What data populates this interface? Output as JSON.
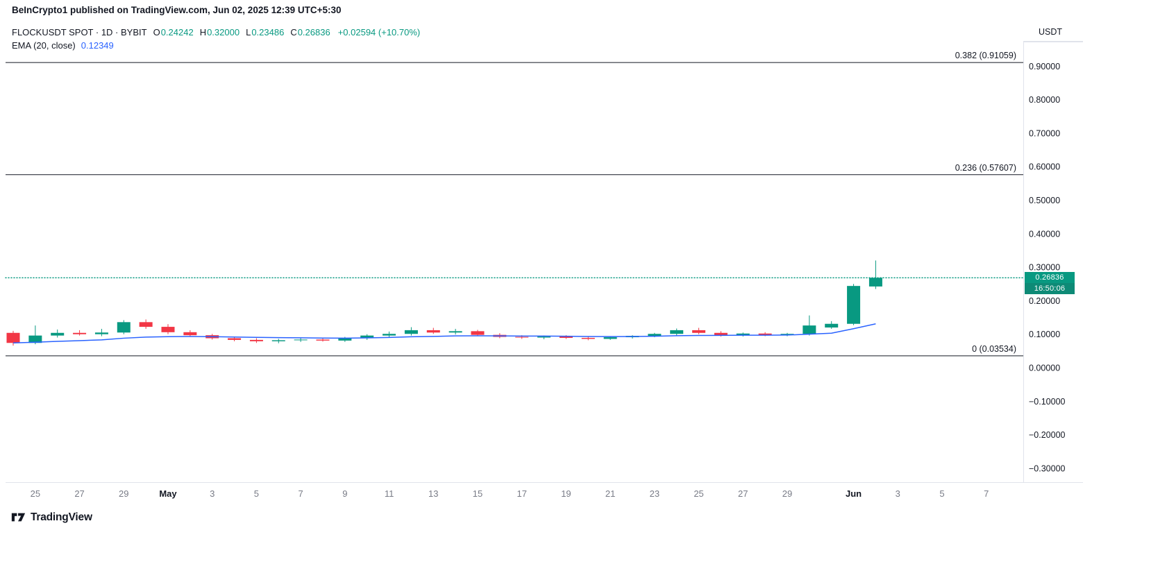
{
  "header": {
    "published_line": "BeInCrypto1 published on TradingView.com, Jun 02, 2025 12:39 UTC+5:30"
  },
  "legend": {
    "symbol": "FLOCKUSDT SPOT · 1D · BYBIT",
    "o_label": "O",
    "o": "0.24242",
    "h_label": "H",
    "h": "0.32000",
    "l_label": "L",
    "l": "0.23486",
    "c_label": "C",
    "c": "0.26836",
    "change": "+0.02594 (+10.70%)",
    "indicator": "EMA (20, close)",
    "indicator_value": "0.12349"
  },
  "price_axis": {
    "currency": "USDT",
    "price_badge": {
      "price": "0.26836",
      "countdown": "16:50:06"
    }
  },
  "footer": {
    "brand": "TradingView"
  },
  "colors": {
    "up": "#089981",
    "down": "#f23645",
    "ema": "#2962ff",
    "fib": "#131722",
    "axis_text": "#131722",
    "muted": "#787b86",
    "border": "#e0e3eb",
    "badge": "#089981",
    "badge_countdown": "#0e8a76",
    "background": "#ffffff"
  },
  "chart_data": {
    "type": "candlestick",
    "symbol": "FLOCKUSDT",
    "market": "SPOT",
    "interval": "1D",
    "exchange": "BYBIT",
    "last_price": 0.26836,
    "ema_period": 20,
    "ema_last_value": 0.12349,
    "ylim": [
      -0.35,
      1.0
    ],
    "grid": false,
    "fib_levels": [
      {
        "label": "0.382 (0.91059)",
        "value": 0.91059
      },
      {
        "label": "0.236 (0.57607)",
        "value": 0.57607
      },
      {
        "label": "0 (0.03534)",
        "value": 0.03534
      }
    ],
    "y_ticks": [
      {
        "label": "0.90000",
        "value": 0.9
      },
      {
        "label": "0.80000",
        "value": 0.8
      },
      {
        "label": "0.70000",
        "value": 0.7
      },
      {
        "label": "0.60000",
        "value": 0.6
      },
      {
        "label": "0.50000",
        "value": 0.5
      },
      {
        "label": "0.40000",
        "value": 0.4
      },
      {
        "label": "0.30000",
        "value": 0.3
      },
      {
        "label": "0.20000",
        "value": 0.2
      },
      {
        "label": "0.10000",
        "value": 0.1
      },
      {
        "label": "0.00000",
        "value": 0.0
      },
      {
        "label": "−0.10000",
        "value": -0.1
      },
      {
        "label": "−0.20000",
        "value": -0.2
      },
      {
        "label": "−0.30000",
        "value": -0.3
      }
    ],
    "x_ticks": [
      {
        "label": "25",
        "day": 1,
        "bold": false
      },
      {
        "label": "27",
        "day": 3,
        "bold": false
      },
      {
        "label": "29",
        "day": 5,
        "bold": false
      },
      {
        "label": "May",
        "day": 7,
        "bold": true
      },
      {
        "label": "3",
        "day": 9,
        "bold": false
      },
      {
        "label": "5",
        "day": 11,
        "bold": false
      },
      {
        "label": "7",
        "day": 13,
        "bold": false
      },
      {
        "label": "9",
        "day": 15,
        "bold": false
      },
      {
        "label": "11",
        "day": 17,
        "bold": false
      },
      {
        "label": "13",
        "day": 19,
        "bold": false
      },
      {
        "label": "15",
        "day": 21,
        "bold": false
      },
      {
        "label": "17",
        "day": 23,
        "bold": false
      },
      {
        "label": "19",
        "day": 25,
        "bold": false
      },
      {
        "label": "21",
        "day": 27,
        "bold": false
      },
      {
        "label": "23",
        "day": 29,
        "bold": false
      },
      {
        "label": "25",
        "day": 31,
        "bold": false
      },
      {
        "label": "27",
        "day": 33,
        "bold": false
      },
      {
        "label": "29",
        "day": 35,
        "bold": false
      },
      {
        "label": "Jun",
        "day": 38,
        "bold": true
      },
      {
        "label": "3",
        "day": 40,
        "bold": false
      },
      {
        "label": "5",
        "day": 42,
        "bold": false
      },
      {
        "label": "7",
        "day": 44,
        "bold": false
      }
    ],
    "candles": [
      {
        "date": "Apr 24",
        "o": 0.104,
        "h": 0.11,
        "l": 0.066,
        "c": 0.074
      },
      {
        "date": "Apr 25",
        "o": 0.074,
        "h": 0.126,
        "l": 0.07,
        "c": 0.096
      },
      {
        "date": "Apr 26",
        "o": 0.096,
        "h": 0.114,
        "l": 0.09,
        "c": 0.104
      },
      {
        "date": "Apr 27",
        "o": 0.104,
        "h": 0.112,
        "l": 0.096,
        "c": 0.1
      },
      {
        "date": "Apr 28",
        "o": 0.1,
        "h": 0.116,
        "l": 0.094,
        "c": 0.105
      },
      {
        "date": "Apr 29",
        "o": 0.105,
        "h": 0.142,
        "l": 0.1,
        "c": 0.136
      },
      {
        "date": "Apr 30",
        "o": 0.136,
        "h": 0.144,
        "l": 0.116,
        "c": 0.122
      },
      {
        "date": "May 1",
        "o": 0.122,
        "h": 0.13,
        "l": 0.1,
        "c": 0.106
      },
      {
        "date": "May 2",
        "o": 0.106,
        "h": 0.112,
        "l": 0.092,
        "c": 0.097
      },
      {
        "date": "May 3",
        "o": 0.097,
        "h": 0.101,
        "l": 0.084,
        "c": 0.088
      },
      {
        "date": "May 4",
        "o": 0.088,
        "h": 0.093,
        "l": 0.079,
        "c": 0.083
      },
      {
        "date": "May 5",
        "o": 0.083,
        "h": 0.088,
        "l": 0.074,
        "c": 0.079
      },
      {
        "date": "May 6",
        "o": 0.079,
        "h": 0.086,
        "l": 0.073,
        "c": 0.082
      },
      {
        "date": "May 7",
        "o": 0.082,
        "h": 0.088,
        "l": 0.077,
        "c": 0.084
      },
      {
        "date": "May 8",
        "o": 0.084,
        "h": 0.089,
        "l": 0.078,
        "c": 0.081
      },
      {
        "date": "May 9",
        "o": 0.081,
        "h": 0.092,
        "l": 0.077,
        "c": 0.088
      },
      {
        "date": "May 10",
        "o": 0.088,
        "h": 0.1,
        "l": 0.083,
        "c": 0.096
      },
      {
        "date": "May 11",
        "o": 0.096,
        "h": 0.108,
        "l": 0.09,
        "c": 0.101
      },
      {
        "date": "May 12",
        "o": 0.101,
        "h": 0.121,
        "l": 0.096,
        "c": 0.112
      },
      {
        "date": "May 13",
        "o": 0.112,
        "h": 0.119,
        "l": 0.101,
        "c": 0.105
      },
      {
        "date": "May 14",
        "o": 0.105,
        "h": 0.116,
        "l": 0.099,
        "c": 0.109
      },
      {
        "date": "May 15",
        "o": 0.109,
        "h": 0.113,
        "l": 0.094,
        "c": 0.098
      },
      {
        "date": "May 16",
        "o": 0.098,
        "h": 0.103,
        "l": 0.088,
        "c": 0.092
      },
      {
        "date": "May 17",
        "o": 0.092,
        "h": 0.097,
        "l": 0.086,
        "c": 0.09
      },
      {
        "date": "May 18",
        "o": 0.09,
        "h": 0.096,
        "l": 0.085,
        "c": 0.093
      },
      {
        "date": "May 19",
        "o": 0.093,
        "h": 0.097,
        "l": 0.086,
        "c": 0.089
      },
      {
        "date": "May 20",
        "o": 0.089,
        "h": 0.094,
        "l": 0.082,
        "c": 0.086
      },
      {
        "date": "May 21",
        "o": 0.086,
        "h": 0.093,
        "l": 0.083,
        "c": 0.091
      },
      {
        "date": "May 22",
        "o": 0.091,
        "h": 0.097,
        "l": 0.087,
        "c": 0.095
      },
      {
        "date": "May 23",
        "o": 0.095,
        "h": 0.104,
        "l": 0.091,
        "c": 0.101
      },
      {
        "date": "May 24",
        "o": 0.101,
        "h": 0.117,
        "l": 0.096,
        "c": 0.112
      },
      {
        "date": "May 25",
        "o": 0.112,
        "h": 0.119,
        "l": 0.1,
        "c": 0.104
      },
      {
        "date": "May 26",
        "o": 0.104,
        "h": 0.109,
        "l": 0.093,
        "c": 0.097
      },
      {
        "date": "May 27",
        "o": 0.097,
        "h": 0.105,
        "l": 0.093,
        "c": 0.102
      },
      {
        "date": "May 28",
        "o": 0.102,
        "h": 0.106,
        "l": 0.094,
        "c": 0.098
      },
      {
        "date": "May 29",
        "o": 0.098,
        "h": 0.104,
        "l": 0.094,
        "c": 0.101
      },
      {
        "date": "May 30",
        "o": 0.101,
        "h": 0.156,
        "l": 0.096,
        "c": 0.126
      },
      {
        "date": "May 31",
        "o": 0.12,
        "h": 0.139,
        "l": 0.116,
        "c": 0.131
      },
      {
        "date": "Jun 1",
        "o": 0.131,
        "h": 0.25,
        "l": 0.127,
        "c": 0.244
      },
      {
        "date": "Jun 2",
        "o": 0.24242,
        "h": 0.32,
        "l": 0.23486,
        "c": 0.26836
      }
    ]
  }
}
